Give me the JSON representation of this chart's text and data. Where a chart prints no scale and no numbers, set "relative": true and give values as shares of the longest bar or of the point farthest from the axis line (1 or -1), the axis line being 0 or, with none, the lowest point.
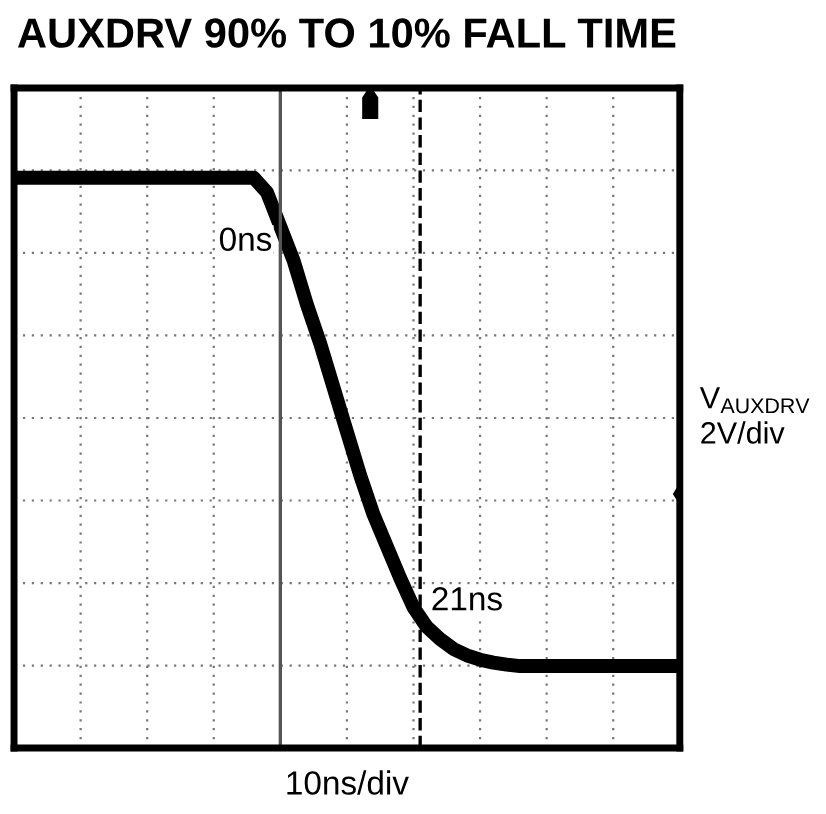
{
  "chart_data": {
    "type": "line",
    "title": "AUXDRV 90% TO 10% FALL TIME",
    "xlabel": "10ns/div",
    "ylabel": "V$_{AUXDRV}$\n2V/div",
    "relative": true,
    "categories": [
      null,
      null,
      null,
      null,
      null,
      null,
      null,
      null,
      null,
      null,
      null,
      null,
      null,
      null,
      null,
      null,
      null,
      null,
      null,
      null,
      null,
      null,
      null,
      null,
      null,
      null,
      null,
      null,
      null,
      null,
      null,
      null,
      null,
      null,
      null,
      null,
      null,
      null,
      null,
      null,
      null,
      null,
      null,
      null,
      null,
      null,
      null,
      null,
      null,
      null,
      null
    ],
    "series": [
      {
        "color": "#000000",
        "values": [
          1,
          1,
          1,
          1,
          1,
          1,
          1,
          1,
          1,
          1,
          1,
          1,
          1,
          1,
          1,
          1,
          1,
          1,
          1,
          0.97,
          0.9,
          0.83,
          0.74,
          0.66,
          0.57,
          0.48,
          0.39,
          0.31,
          0.245,
          0.18,
          0.12,
          0.08,
          0.055,
          0.035,
          0.022,
          0.013,
          0.007,
          0.003,
          0,
          0,
          0,
          0,
          0,
          0,
          0,
          0,
          0,
          0,
          0,
          0,
          0
        ]
      }
    ],
    "annotations": [
      "0ns",
      "21ns"
    ],
    "tick_labels": false,
    "grid": true,
    "legend": false,
    "marker": "none",
    "line_style": "solid"
  }
}
